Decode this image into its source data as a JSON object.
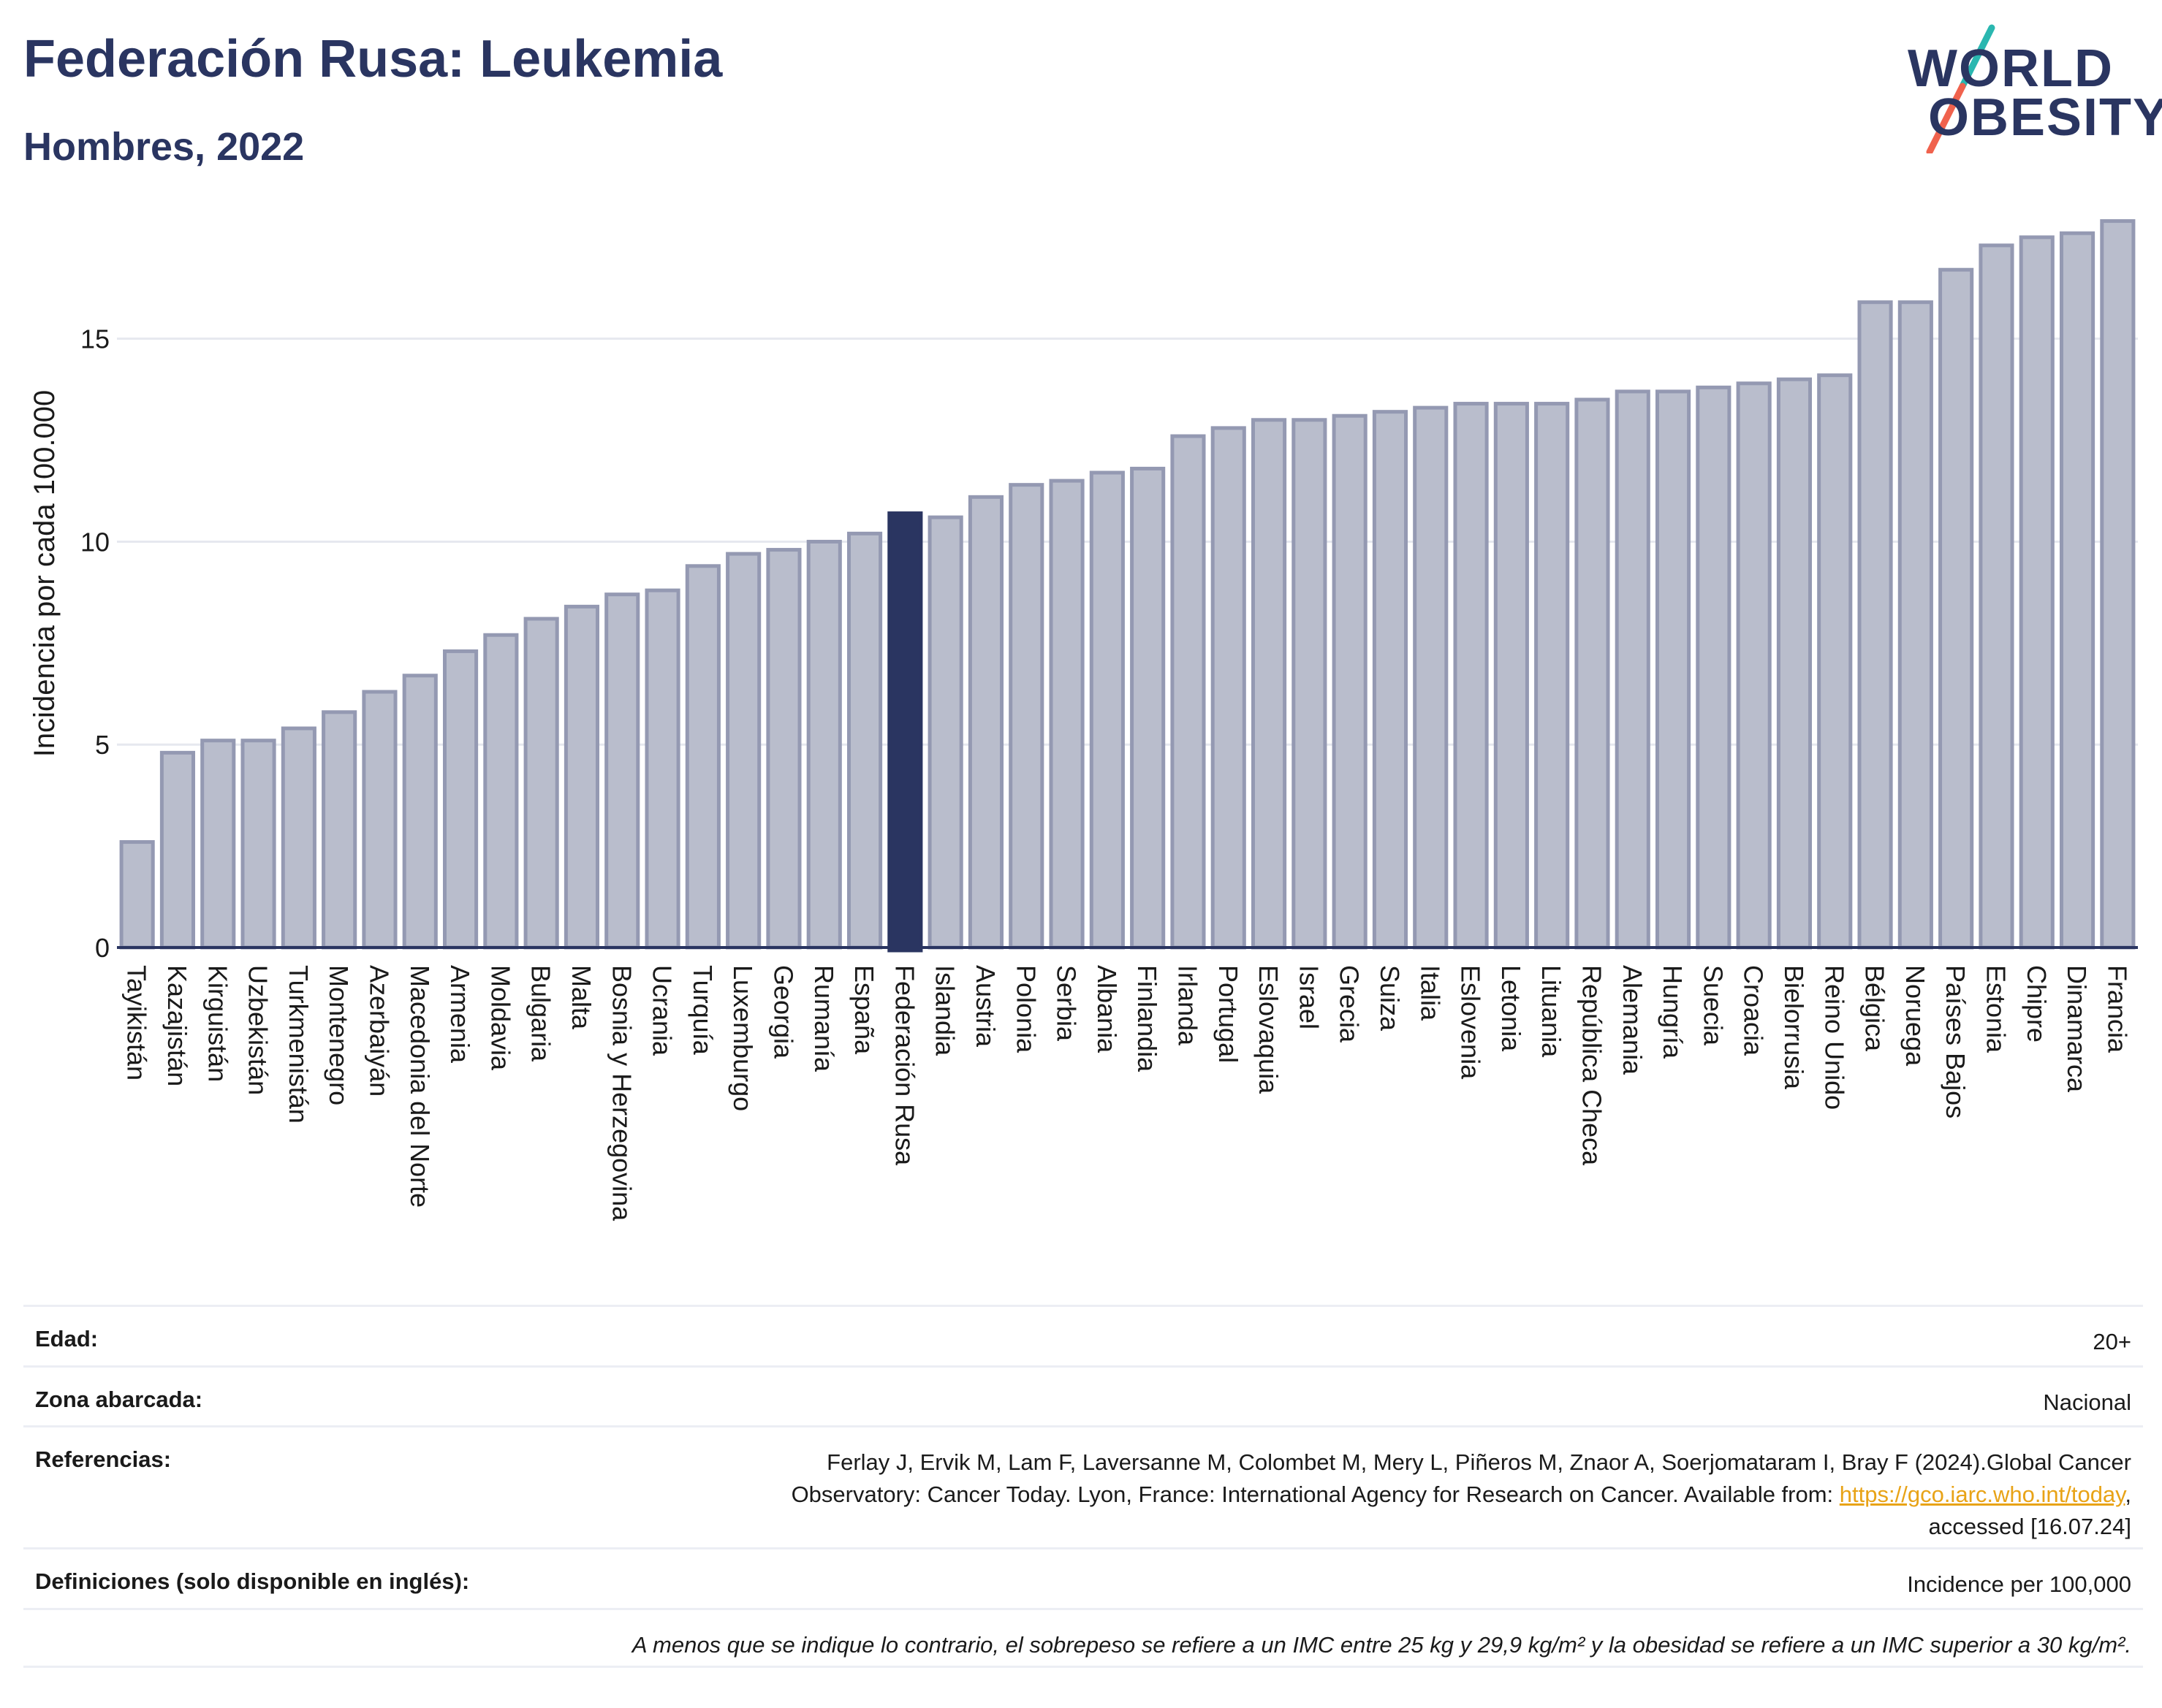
{
  "title": "Federación Rusa: Leukemia",
  "subtitle": "Hombres, 2022",
  "logo": {
    "line1": "WORLD",
    "line2": "OBESITY",
    "text_color": "#2a3561",
    "slash_colors": [
      "#2ab7b0",
      "#f0624d"
    ]
  },
  "colors": {
    "bar": "#b9bdcc",
    "bar_stroke": "#9499b2",
    "highlight": "#2a3561",
    "grid": "#e6e8ef",
    "axis": "#2a3561"
  },
  "chart_data": {
    "type": "bar",
    "ylabel": "Incidencia por cada 100.000",
    "xlabel": "",
    "ylim": [
      0,
      18
    ],
    "yticks": [
      0,
      5,
      10,
      15
    ],
    "grid": true,
    "highlight": "Federación Rusa",
    "categories": [
      "Tayikistán",
      "Kazajistán",
      "Kirguistán",
      "Uzbekistán",
      "Turkmenistán",
      "Montenegro",
      "Azerbaiyán",
      "Macedonia del Norte",
      "Armenia",
      "Moldavia",
      "Bulgaria",
      "Malta",
      "Bosnia y Herzegovina",
      "Ucrania",
      "Turquía",
      "Luxemburgo",
      "Georgia",
      "Rumanía",
      "España",
      "Federación Rusa",
      "Islandia",
      "Austria",
      "Polonia",
      "Serbia",
      "Albania",
      "Finlandia",
      "Irlanda",
      "Portugal",
      "Eslovaquia",
      "Israel",
      "Grecia",
      "Suiza",
      "Italia",
      "Eslovenia",
      "Letonia",
      "Lituania",
      "República Checa",
      "Alemania",
      "Hungría",
      "Suecia",
      "Croacia",
      "Bielorrusia",
      "Reino Unido",
      "Bélgica",
      "Noruega",
      "Países Bajos",
      "Estonia",
      "Chipre",
      "Dinamarca",
      "Francia"
    ],
    "values": [
      2.6,
      4.8,
      5.1,
      5.1,
      5.4,
      5.8,
      6.3,
      6.7,
      7.3,
      7.7,
      8.1,
      8.4,
      8.7,
      8.8,
      9.4,
      9.7,
      9.8,
      10.0,
      10.2,
      10.7,
      10.6,
      11.1,
      11.4,
      11.5,
      11.7,
      11.8,
      12.6,
      12.8,
      13.0,
      13.0,
      13.1,
      13.2,
      13.3,
      13.4,
      13.4,
      13.4,
      13.5,
      13.7,
      13.7,
      13.8,
      13.9,
      14.0,
      14.1,
      15.9,
      15.9,
      16.7,
      17.3,
      17.5,
      17.6,
      17.9
    ]
  },
  "meta": {
    "age_label": "Edad:",
    "age_value": "20+",
    "zone_label": "Zona abarcada:",
    "zone_value": "Nacional",
    "ref_label": "Referencias:",
    "ref_line1": "Ferlay J, Ervik M, Lam F, Laversanne M, Colombet M, Mery L, Piñeros M, Znaor A, Soerjomataram I, Bray F (2024).Global Cancer",
    "ref_line2_pre": "Observatory: Cancer Today. Lyon, France: International Agency for Research on Cancer. Available from: ",
    "ref_link": "https://gco.iarc.who.int/today",
    "ref_line2_post": ",",
    "ref_line3": "accessed [16.07.24]",
    "def_label": "Definiciones (solo disponible en inglés):",
    "def_value": "Incidence per 100,000",
    "note": "A menos que se indique lo contrario, el sobrepeso se refiere a un IMC entre 25 kg y 29,9 kg/m² y la obesidad se refiere a un IMC superior a 30 kg/m²."
  }
}
